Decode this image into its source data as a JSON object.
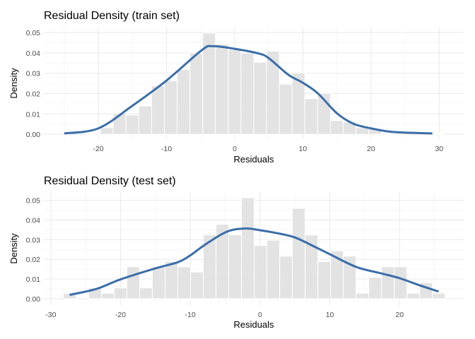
{
  "chart_data": [
    {
      "type": "bar+line",
      "title": "Residual Density (train set)",
      "xlabel": "Residuals",
      "ylabel": "Density",
      "xlim": [
        -28,
        33.7
      ],
      "ylim": [
        -0.0024,
        0.0528
      ],
      "xticks": [
        -20,
        -10,
        0,
        10,
        20,
        30
      ],
      "yticks": [
        0.0,
        0.01,
        0.02,
        0.03,
        0.04,
        0.05
      ],
      "ytick_labels": [
        "0.00",
        "0.01",
        "0.02",
        "0.03",
        "0.04",
        "0.05"
      ],
      "grid": true,
      "bin_width": 1.874,
      "histogram": {
        "bin_centers": [
          -20.62,
          -18.75,
          -16.88,
          -15.0,
          -13.13,
          -11.25,
          -9.38,
          -7.51,
          -5.63,
          -3.76,
          -1.89,
          -0.01,
          1.86,
          3.74,
          5.61,
          7.48,
          9.36,
          11.23,
          13.11,
          14.98,
          16.85,
          18.73,
          20.6,
          22.47,
          24.35,
          26.22,
          28.1,
          29.97
        ],
        "density": [
          0.0003,
          0.0032,
          0.0103,
          0.0094,
          0.0139,
          0.0238,
          0.0263,
          0.0318,
          0.0399,
          0.0497,
          0.0443,
          0.0416,
          0.0399,
          0.0354,
          0.0408,
          0.0246,
          0.0301,
          0.0175,
          0.0201,
          0.0067,
          0.006,
          0.0032,
          0.0029,
          0.0006,
          0,
          0,
          0,
          0.0003
        ]
      },
      "density_curve": {
        "color": "#3a6ea8",
        "x": [
          -25.0,
          -20.0,
          -15.1,
          -10.0,
          -4.8,
          -3.2,
          0.0,
          3.5,
          5.0,
          7.85,
          10.0,
          12.2,
          15.0,
          17.4,
          20.0,
          23.3,
          29.0
        ],
        "y": [
          0.0004,
          0.0029,
          0.0138,
          0.0264,
          0.0414,
          0.0433,
          0.042,
          0.0397,
          0.0374,
          0.0293,
          0.0253,
          0.0201,
          0.0103,
          0.0052,
          0.0029,
          0.0011,
          0.0004
        ]
      },
      "bar_color": "#e0e0e0"
    },
    {
      "type": "bar+line",
      "title": "Residual Density (test set)",
      "xlabel": "Residuals",
      "ylabel": "Density",
      "xlim": [
        -31.0,
        29.3
      ],
      "ylim": [
        -0.0033,
        0.0542
      ],
      "xticks": [
        -30,
        -20,
        -10,
        0,
        10,
        20
      ],
      "yticks": [
        0.0,
        0.01,
        0.02,
        0.03,
        0.04,
        0.05
      ],
      "ytick_labels": [
        "0.00",
        "0.01",
        "0.02",
        "0.03",
        "0.04",
        "0.05"
      ],
      "grid": true,
      "bin_width": 1.825,
      "histogram": {
        "bin_centers": [
          -27.3,
          -25.48,
          -23.65,
          -21.83,
          -20.0,
          -18.18,
          -16.35,
          -14.53,
          -12.7,
          -10.88,
          -9.05,
          -7.23,
          -5.4,
          -3.58,
          -1.75,
          0.08,
          1.9,
          3.73,
          5.55,
          7.38,
          9.2,
          11.03,
          12.85,
          14.68,
          16.5,
          18.33,
          20.15,
          21.98,
          23.8,
          25.63
        ],
        "density": [
          0.0027,
          0,
          0.0054,
          0.0027,
          0.0054,
          0.0162,
          0.0054,
          0.0162,
          0.0189,
          0.0162,
          0.0135,
          0.0324,
          0.0378,
          0.0324,
          0.0513,
          0.027,
          0.0297,
          0.0216,
          0.0459,
          0.0324,
          0.0189,
          0.0243,
          0.0216,
          0.0027,
          0.0108,
          0.0162,
          0.0162,
          0.0027,
          0.0081,
          0.0027
        ]
      },
      "density_curve": {
        "color": "#3a6ea8",
        "x": [
          -27.3,
          -23.4,
          -20.0,
          -14.9,
          -11.8,
          -10.0,
          -7.9,
          -4.8,
          -2.1,
          0.0,
          2.9,
          5.1,
          7.6,
          10.0,
          13.8,
          17.3,
          20.0,
          23.1,
          25.6
        ],
        "y": [
          0.0019,
          0.005,
          0.0098,
          0.0155,
          0.0185,
          0.022,
          0.0274,
          0.034,
          0.0357,
          0.0348,
          0.033,
          0.031,
          0.0268,
          0.0226,
          0.0161,
          0.0129,
          0.0104,
          0.0065,
          0.0036
        ]
      },
      "bar_color": "#e0e0e0"
    }
  ]
}
